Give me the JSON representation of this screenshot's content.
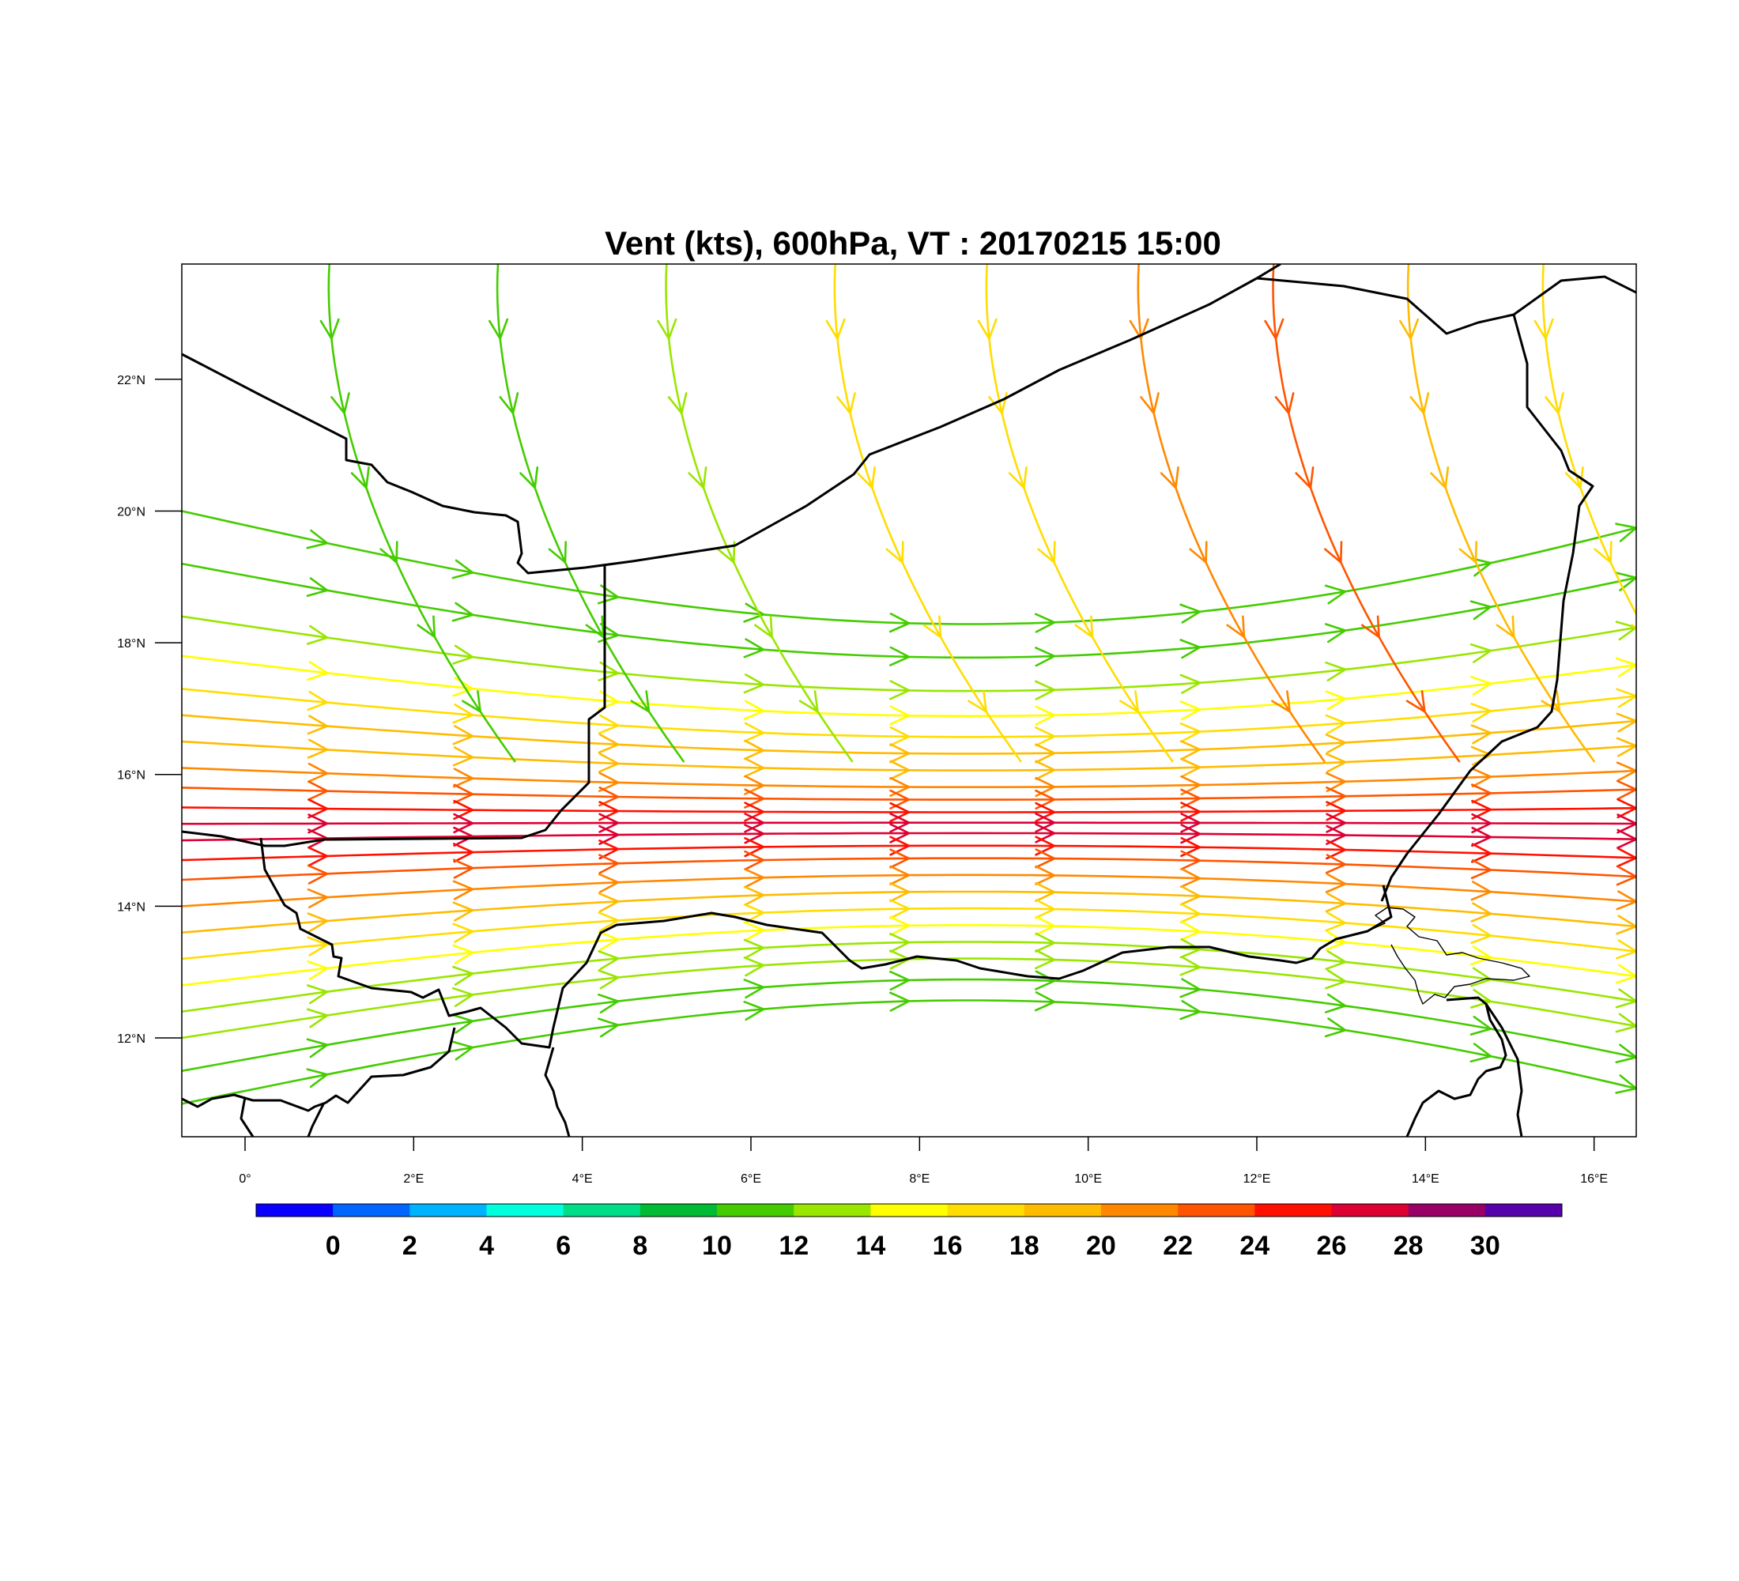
{
  "title": "Vent (kts), 600hPa, VT : 20170215  15:00",
  "map": {
    "lon_range": [
      -0.75,
      16.5
    ],
    "lat_range": [
      10.5,
      23.75
    ],
    "lon_ticks": [
      {
        "value": 0,
        "label": "0°"
      },
      {
        "value": 2,
        "label": "2°E"
      },
      {
        "value": 4,
        "label": "4°E"
      },
      {
        "value": 6,
        "label": "6°E"
      },
      {
        "value": 8,
        "label": "8°E"
      },
      {
        "value": 10,
        "label": "10°E"
      },
      {
        "value": 12,
        "label": "12°E"
      },
      {
        "value": 14,
        "label": "14°E"
      },
      {
        "value": 16,
        "label": "16°E"
      }
    ],
    "lat_ticks": [
      {
        "value": 22,
        "label": "22°N"
      },
      {
        "value": 20,
        "label": "20°N"
      },
      {
        "value": 18,
        "label": "18°N"
      },
      {
        "value": 16,
        "label": "16°N"
      },
      {
        "value": 14,
        "label": "14°N"
      },
      {
        "value": 12,
        "label": "12°N"
      }
    ]
  },
  "colorbar": {
    "colors": [
      "#0a00ff",
      "#0066ff",
      "#00b3ff",
      "#00ffdd",
      "#00dd88",
      "#00bb33",
      "#44cc00",
      "#99e600",
      "#ffff00",
      "#ffdd00",
      "#ffbb00",
      "#ff8800",
      "#ff5500",
      "#ff1100",
      "#dd0033",
      "#990066",
      "#5500aa"
    ],
    "labels": [
      "0",
      "2",
      "4",
      "6",
      "8",
      "10",
      "12",
      "14",
      "16",
      "18",
      "20",
      "22",
      "24",
      "26",
      "28",
      "30"
    ]
  },
  "flow": {
    "description_fields": [
      "speed bands (kts)"
    ],
    "core_speed_kts": 26,
    "core_lat": 15.3,
    "streams": [
      {
        "lat": 20.0,
        "speed": 10
      },
      {
        "lat": 19.2,
        "speed": 11
      },
      {
        "lat": 18.4,
        "speed": 13
      },
      {
        "lat": 17.8,
        "speed": 15
      },
      {
        "lat": 17.3,
        "speed": 17
      },
      {
        "lat": 16.9,
        "speed": 18
      },
      {
        "lat": 16.5,
        "speed": 19
      },
      {
        "lat": 16.1,
        "speed": 21
      },
      {
        "lat": 15.8,
        "speed": 23
      },
      {
        "lat": 15.5,
        "speed": 25
      },
      {
        "lat": 15.25,
        "speed": 26
      },
      {
        "lat": 15.0,
        "speed": 26
      },
      {
        "lat": 14.7,
        "speed": 24
      },
      {
        "lat": 14.4,
        "speed": 22
      },
      {
        "lat": 14.0,
        "speed": 20
      },
      {
        "lat": 13.6,
        "speed": 18
      },
      {
        "lat": 13.2,
        "speed": 16
      },
      {
        "lat": 12.8,
        "speed": 15
      },
      {
        "lat": 12.4,
        "speed": 13
      },
      {
        "lat": 12.0,
        "speed": 12
      },
      {
        "lat": 11.5,
        "speed": 11
      },
      {
        "lat": 11.0,
        "speed": 10
      }
    ],
    "northerlies": [
      {
        "lon": 1.0,
        "speed": 11
      },
      {
        "lon": 3.0,
        "speed": 11
      },
      {
        "lon": 5.0,
        "speed": 13
      },
      {
        "lon": 7.0,
        "speed": 16
      },
      {
        "lon": 8.8,
        "speed": 17
      },
      {
        "lon": 10.6,
        "speed": 20
      },
      {
        "lon": 12.2,
        "speed": 22
      },
      {
        "lon": 13.8,
        "speed": 19
      },
      {
        "lon": 15.4,
        "speed": 16
      }
    ]
  }
}
